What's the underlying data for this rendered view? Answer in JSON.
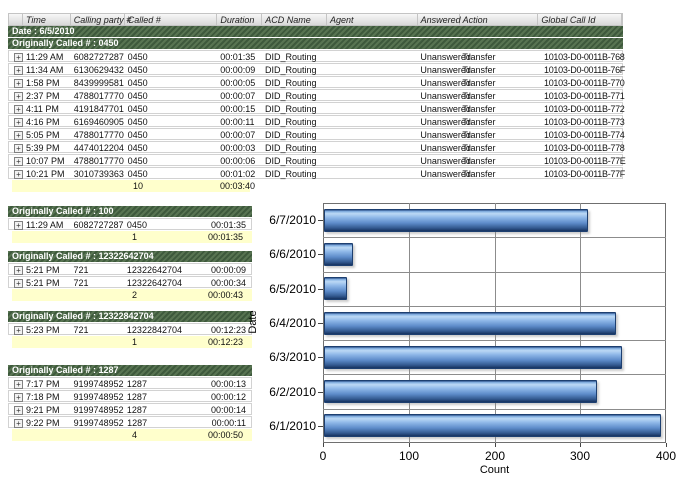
{
  "table": {
    "columns": [
      "",
      "Time",
      "Calling party #",
      "Called #",
      "Duration",
      "ACD Name",
      "Agent",
      "Answered",
      "Action",
      "Global Call Id"
    ],
    "column_keys": [
      "exp",
      "time",
      "calling",
      "called",
      "duration",
      "acd",
      "agent",
      "answered",
      "action",
      "global_id"
    ],
    "expand_icon": "+",
    "date_header": "Date : 6/5/2010",
    "main_group": {
      "title": "Originally Called # : 0450",
      "rows": [
        {
          "time": "11:29 AM",
          "calling": "6082727287",
          "called": "0450",
          "duration": "00:01:35",
          "acd": "DID_Routing",
          "agent": "",
          "answered": "Unanswered",
          "action": "Transfer",
          "global_id": "10103-D0-0011B-768"
        },
        {
          "time": "11:34 AM",
          "calling": "6130629432",
          "called": "0450",
          "duration": "00:00:09",
          "acd": "DID_Routing",
          "agent": "",
          "answered": "Unanswered",
          "action": "Transfer",
          "global_id": "10103-D0-0011B-76F"
        },
        {
          "time": "1:58 PM",
          "calling": "8439999581",
          "called": "0450",
          "duration": "00:00:05",
          "acd": "DID_Routing",
          "agent": "",
          "answered": "Unanswered",
          "action": "Transfer",
          "global_id": "10103-D0-0011B-770"
        },
        {
          "time": "2:37 PM",
          "calling": "4788017770",
          "called": "0450",
          "duration": "00:00:07",
          "acd": "DID_Routing",
          "agent": "",
          "answered": "Unanswered",
          "action": "Transfer",
          "global_id": "10103-D0-0011B-771"
        },
        {
          "time": "4:11 PM",
          "calling": "4191847701",
          "called": "0450",
          "duration": "00:00:15",
          "acd": "DID_Routing",
          "agent": "",
          "answered": "Unanswered",
          "action": "Transfer",
          "global_id": "10103-D0-0011B-772"
        },
        {
          "time": "4:16 PM",
          "calling": "6169460905",
          "called": "0450",
          "duration": "00:00:11",
          "acd": "DID_Routing",
          "agent": "",
          "answered": "Unanswered",
          "action": "Transfer",
          "global_id": "10103-D0-0011B-773"
        },
        {
          "time": "5:05 PM",
          "calling": "4788017770",
          "called": "0450",
          "duration": "00:00:07",
          "acd": "DID_Routing",
          "agent": "",
          "answered": "Unanswered",
          "action": "Transfer",
          "global_id": "10103-D0-0011B-774"
        },
        {
          "time": "5:39 PM",
          "calling": "4474012204",
          "called": "0450",
          "duration": "00:00:03",
          "acd": "DID_Routing",
          "agent": "",
          "answered": "Unanswered",
          "action": "Transfer",
          "global_id": "10103-D0-0011B-778"
        },
        {
          "time": "10:07 PM",
          "calling": "4788017770",
          "called": "0450",
          "duration": "00:00:06",
          "acd": "DID_Routing",
          "agent": "",
          "answered": "Unanswered",
          "action": "Transfer",
          "global_id": "10103-D0-0011B-77E"
        },
        {
          "time": "10:21 PM",
          "calling": "3010739363",
          "called": "0450",
          "duration": "00:01:02",
          "acd": "DID_Routing",
          "agent": "",
          "answered": "Unanswered",
          "action": "Transfer",
          "global_id": "10103-D0-0011B-77F"
        }
      ],
      "summary": {
        "count": "10",
        "total_duration": "00:03:40"
      }
    },
    "sub_groups": [
      {
        "title": "Originally Called # : 100",
        "rows": [
          {
            "time": "11:29 AM",
            "calling": "6082727287",
            "called": "0450",
            "duration": "00:01:35"
          }
        ],
        "summary": {
          "count": "1",
          "total_duration": "00:01:35"
        }
      },
      {
        "title": "Originally Called # : 12322642704",
        "rows": [
          {
            "time": "5:21 PM",
            "calling": "721",
            "called": "12322642704",
            "duration": "00:00:09"
          },
          {
            "time": "5:21 PM",
            "calling": "721",
            "called": "12322642704",
            "duration": "00:00:34"
          }
        ],
        "summary": {
          "count": "2",
          "total_duration": "00:00:43"
        }
      },
      {
        "title": "Originally Called # : 12322842704",
        "rows": [
          {
            "time": "5:23 PM",
            "calling": "721",
            "called": "12322842704",
            "duration": "00:12:23"
          }
        ],
        "summary": {
          "count": "1",
          "total_duration": "00:12:23"
        }
      },
      {
        "title": "Originally Called # : 1287",
        "rows": [
          {
            "time": "7:17 PM",
            "calling": "9199748952",
            "called": "1287",
            "duration": "00:00:13"
          },
          {
            "time": "7:18 PM",
            "calling": "9199748952",
            "called": "1287",
            "duration": "00:00:12"
          },
          {
            "time": "9:21 PM",
            "calling": "9199748952",
            "called": "1287",
            "duration": "00:00:14"
          },
          {
            "time": "9:22 PM",
            "calling": "9199748952",
            "called": "1287",
            "duration": "00:00:11"
          }
        ],
        "summary": {
          "count": "4",
          "total_duration": "00:00:50"
        }
      }
    ]
  },
  "chart_data": {
    "type": "bar",
    "orientation": "horizontal",
    "categories": [
      "6/7/2010",
      "6/6/2010",
      "6/5/2010",
      "6/4/2010",
      "6/3/2010",
      "6/2/2010",
      "6/1/2010"
    ],
    "values": [
      308,
      34,
      27,
      341,
      348,
      318,
      393
    ],
    "xlabel": "Count",
    "ylabel": "Date",
    "xlim": [
      0,
      400
    ],
    "xticks": [
      0,
      100,
      200,
      300,
      400
    ],
    "grid": true,
    "legend": false,
    "bar_color": "#6f9dd6",
    "bar_border": "#1d3f70"
  },
  "colors": {
    "group_header_bg": "#4a6647",
    "group_header_text": "#ffffff",
    "summary_bg": "#ffffcc",
    "header_bg": "#e3e3e3",
    "row_border": "#d2d2d2"
  }
}
